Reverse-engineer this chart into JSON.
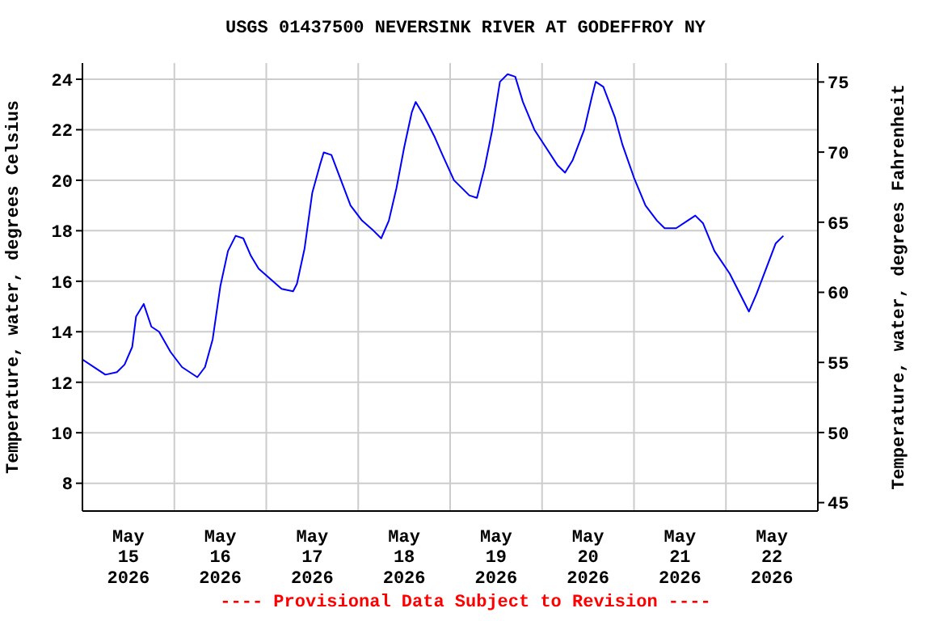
{
  "chart_data": {
    "type": "line",
    "title": "USGS 01437500 NEVERSINK RIVER AT GODEFFROY NY",
    "ylabel": "Temperature, water, degrees Celsius",
    "y2label": "Temperature, water, degrees Fahrenheit",
    "annotations": [
      "---- Provisional Data Subject to Revision ----"
    ],
    "x": [
      "2026-05-15T00:00",
      "2026-05-15T04:00",
      "2026-05-15T06:00",
      "2026-05-15T09:00",
      "2026-05-15T11:00",
      "2026-05-15T13:00",
      "2026-05-15T14:00",
      "2026-05-15T16:00",
      "2026-05-15T18:00",
      "2026-05-15T20:00",
      "2026-05-15T23:00",
      "2026-05-16T02:00",
      "2026-05-16T04:00",
      "2026-05-16T06:00",
      "2026-05-16T08:00",
      "2026-05-16T10:00",
      "2026-05-16T12:00",
      "2026-05-16T14:00",
      "2026-05-16T16:00",
      "2026-05-16T18:00",
      "2026-05-16T20:00",
      "2026-05-16T22:00",
      "2026-05-17T01:00",
      "2026-05-17T04:00",
      "2026-05-17T07:00",
      "2026-05-17T08:00",
      "2026-05-17T10:00",
      "2026-05-17T12:00",
      "2026-05-17T14:00",
      "2026-05-17T15:00",
      "2026-05-17T17:00",
      "2026-05-17T20:00",
      "2026-05-17T22:00",
      "2026-05-18T01:00",
      "2026-05-18T04:00",
      "2026-05-18T06:00",
      "2026-05-18T08:00",
      "2026-05-18T10:00",
      "2026-05-18T12:00",
      "2026-05-18T14:00",
      "2026-05-18T15:00",
      "2026-05-18T17:00",
      "2026-05-18T20:00",
      "2026-05-18T22:00",
      "2026-05-19T01:00",
      "2026-05-19T05:00",
      "2026-05-19T07:00",
      "2026-05-19T09:00",
      "2026-05-19T11:00",
      "2026-05-19T13:00",
      "2026-05-19T15:00",
      "2026-05-19T17:00",
      "2026-05-19T19:00",
      "2026-05-19T22:00",
      "2026-05-20T01:00",
      "2026-05-20T04:00",
      "2026-05-20T06:00",
      "2026-05-20T08:00",
      "2026-05-20T11:00",
      "2026-05-20T13:00",
      "2026-05-20T14:00",
      "2026-05-20T16:00",
      "2026-05-20T19:00",
      "2026-05-20T21:00",
      "2026-05-21T00:00",
      "2026-05-21T03:00",
      "2026-05-21T06:00",
      "2026-05-21T08:00",
      "2026-05-21T11:00",
      "2026-05-21T14:00",
      "2026-05-21T16:00",
      "2026-05-21T18:00",
      "2026-05-21T21:00",
      "2026-05-22T01:00",
      "2026-05-22T04:00",
      "2026-05-22T06:00",
      "2026-05-22T08:00",
      "2026-05-22T11:00",
      "2026-05-22T13:00",
      "2026-05-22T15:00"
    ],
    "series": [
      {
        "color": "#0000ff",
        "values": [
          12.9,
          12.5,
          12.3,
          12.4,
          12.7,
          13.4,
          14.6,
          15.1,
          14.2,
          14.0,
          13.2,
          12.6,
          12.4,
          12.2,
          12.6,
          13.7,
          15.8,
          17.2,
          17.8,
          17.7,
          17.0,
          16.5,
          16.1,
          15.7,
          15.6,
          15.9,
          17.3,
          19.5,
          20.6,
          21.1,
          21.0,
          19.8,
          19.0,
          18.4,
          18.0,
          17.7,
          18.4,
          19.7,
          21.3,
          22.7,
          23.1,
          22.6,
          21.7,
          21.0,
          20.0,
          19.4,
          19.3,
          20.5,
          22.0,
          23.9,
          24.2,
          24.1,
          23.1,
          22.0,
          21.3,
          20.6,
          20.3,
          20.8,
          22.0,
          23.3,
          23.9,
          23.7,
          22.5,
          21.4,
          20.1,
          19.0,
          18.4,
          18.1,
          18.1,
          18.4,
          18.6,
          18.3,
          17.2,
          16.3,
          15.4,
          14.8,
          15.5,
          16.7,
          17.5,
          17.8
        ]
      }
    ],
    "xlim": [
      "2026-05-15T00:00",
      "2026-05-23T00:00"
    ],
    "xticks": [
      {
        "value": "2026-05-15T12:00",
        "label": "May\n15\n2026"
      },
      {
        "value": "2026-05-16T00:00",
        "label": null
      },
      {
        "value": "2026-05-16T12:00",
        "label": "May\n16\n2026"
      },
      {
        "value": "2026-05-17T00:00",
        "label": null
      },
      {
        "value": "2026-05-17T12:00",
        "label": "May\n17\n2026"
      },
      {
        "value": "2026-05-18T00:00",
        "label": null
      },
      {
        "value": "2026-05-18T12:00",
        "label": "May\n18\n2026"
      },
      {
        "value": "2026-05-19T00:00",
        "label": null
      },
      {
        "value": "2026-05-19T12:00",
        "label": "May\n19\n2026"
      },
      {
        "value": "2026-05-20T00:00",
        "label": null
      },
      {
        "value": "2026-05-20T12:00",
        "label": "May\n20\n2026"
      },
      {
        "value": "2026-05-21T00:00",
        "label": null
      },
      {
        "value": "2026-05-21T12:00",
        "label": "May\n21\n2026"
      },
      {
        "value": "2026-05-22T00:00",
        "label": null
      },
      {
        "value": "2026-05-22T12:00",
        "label": "May\n22\n2026"
      }
    ],
    "ylim": [
      6.9,
      24.64
    ],
    "yticks": [
      8,
      10,
      12,
      14,
      16,
      18,
      20,
      22,
      24
    ],
    "y2lim": [
      44.4,
      76.35
    ],
    "y2ticks": [
      45,
      50,
      55,
      60,
      65,
      70,
      75
    ],
    "grid": true
  }
}
